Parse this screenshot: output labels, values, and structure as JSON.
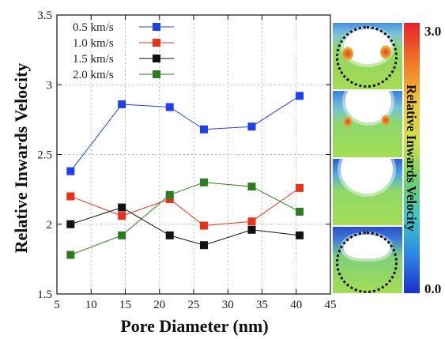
{
  "chart_data": {
    "type": "line",
    "xlabel": "Pore Diameter (nm)",
    "ylabel": "Relative Inwards Velocity",
    "xlim": [
      5,
      45
    ],
    "ylim": [
      1.5,
      3.5
    ],
    "xticks": [
      "5",
      "10",
      "15",
      "20",
      "25",
      "30",
      "35",
      "40",
      "45"
    ],
    "yticks": [
      "1.5",
      "2",
      "2.5",
      "3",
      "3.5"
    ],
    "grid": true,
    "legend": "top-left",
    "series": [
      {
        "name": "0.5 km/s",
        "color": "#2040e8",
        "x": [
          7,
          14.5,
          21.5,
          26.5,
          33.5,
          40.5
        ],
        "y": [
          2.38,
          2.86,
          2.84,
          2.68,
          2.7,
          2.92
        ]
      },
      {
        "name": "1.0 km/s",
        "color": "#e8321c",
        "x": [
          7,
          14.5,
          21.5,
          26.5,
          33.5,
          40.5
        ],
        "y": [
          2.2,
          2.06,
          2.18,
          1.99,
          2.02,
          2.26
        ]
      },
      {
        "name": "1.5 km/s",
        "color": "#111111",
        "x": [
          7,
          14.5,
          21.5,
          26.5,
          33.5,
          40.5
        ],
        "y": [
          2.0,
          2.12,
          1.92,
          1.85,
          1.96,
          1.92
        ]
      },
      {
        "name": "2.0 km/s",
        "color": "#2e7a20",
        "x": [
          7,
          14.5,
          21.5,
          26.5,
          33.5,
          40.5
        ],
        "y": [
          1.78,
          1.92,
          2.21,
          2.3,
          2.27,
          2.09
        ]
      }
    ]
  },
  "colorbar": {
    "title": "Relative Inwards Velocity",
    "max_label": "3.0",
    "min_label": "0.0"
  }
}
